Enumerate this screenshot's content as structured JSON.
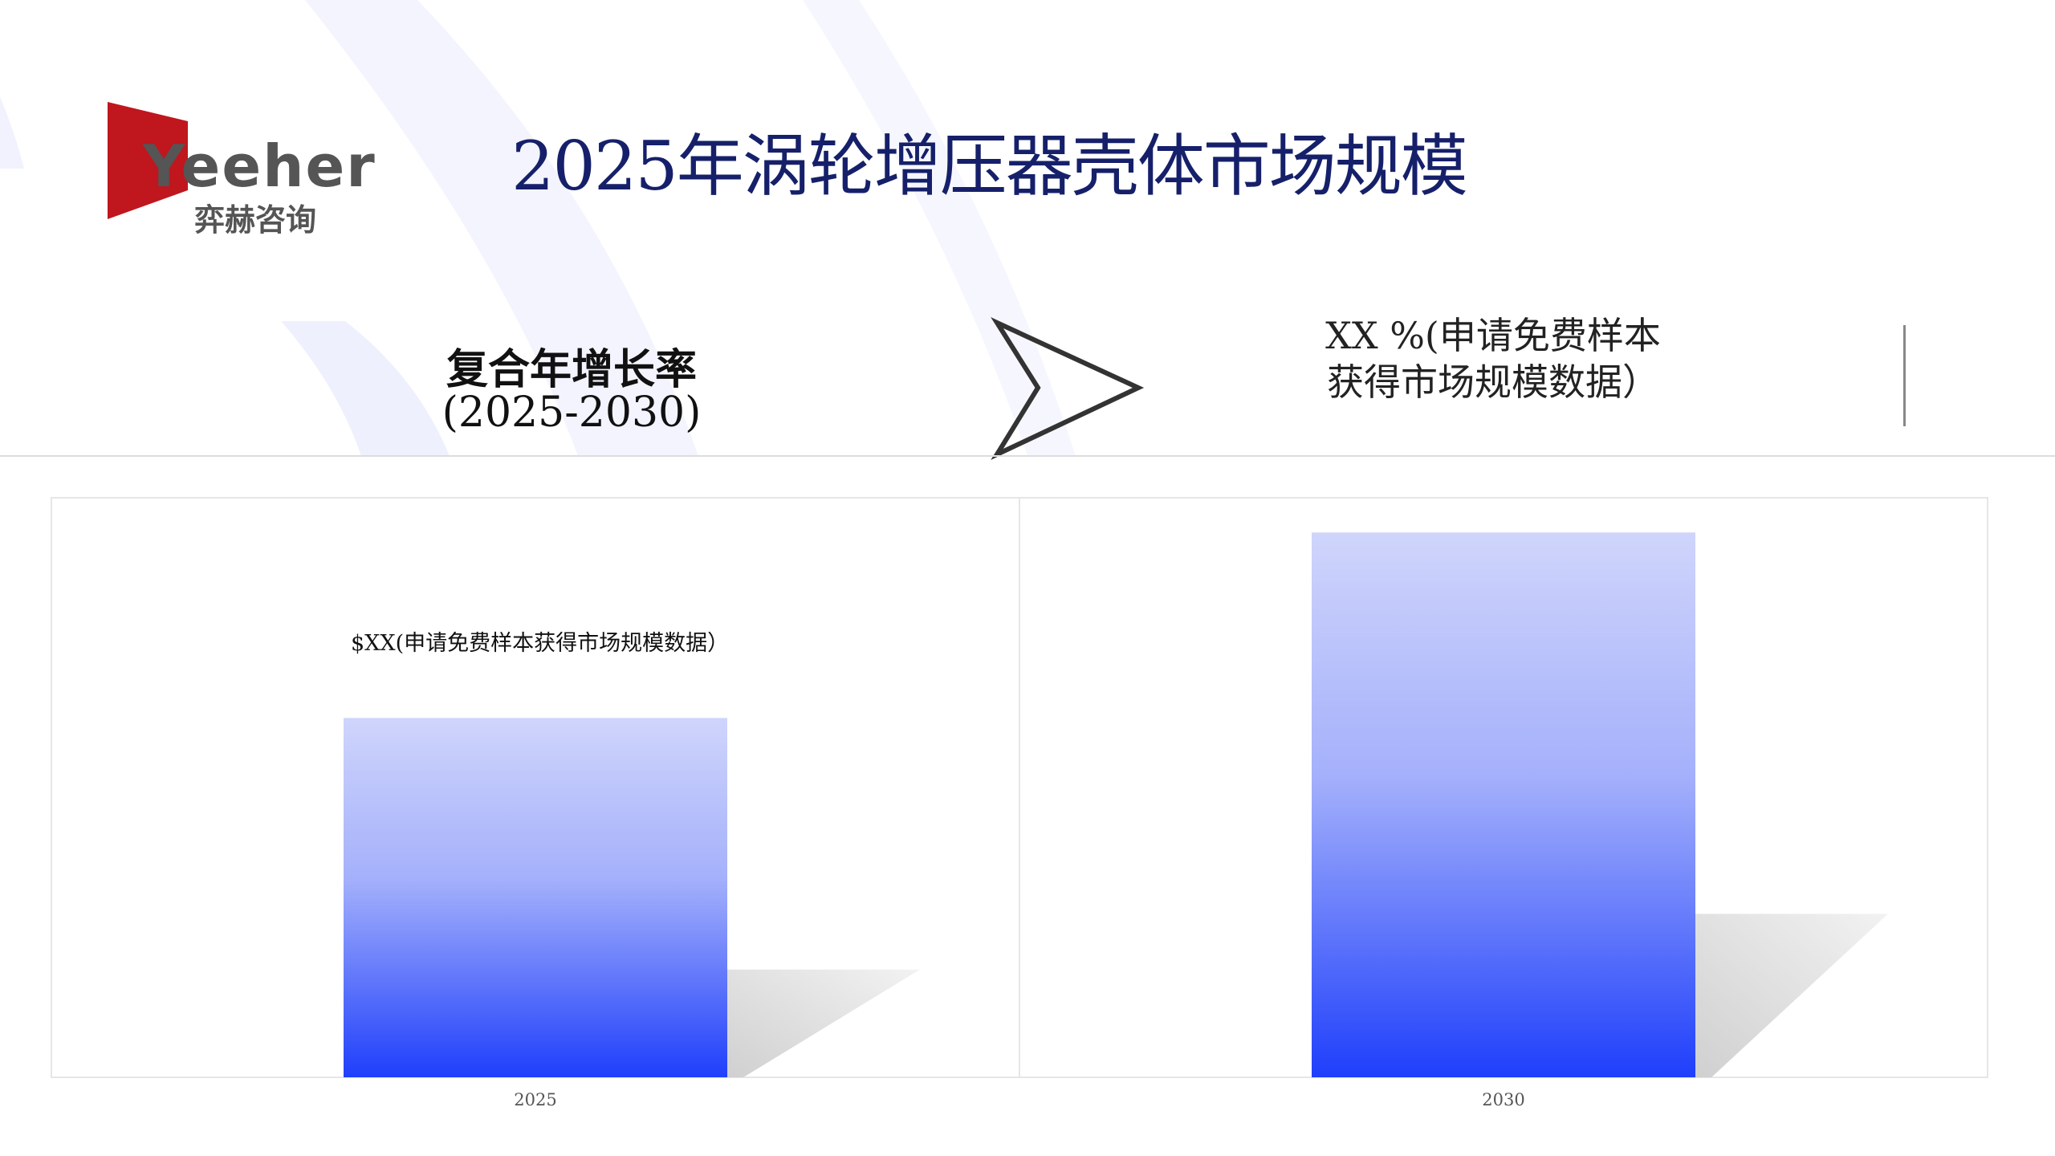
{
  "logo": {
    "brand": "Yeeher",
    "subtitle": "弈赫咨询",
    "color": "#c0161e"
  },
  "header": {
    "title": "2025年涡轮增压器壳体市场规模"
  },
  "cagr": {
    "label": "复合年增长率",
    "period": "(2025-2030)"
  },
  "arrow_icon": "chevron-right-arrow",
  "cagr_value": {
    "line1": "XX %(申请免费样本",
    "line2": "获得市场规模数据）"
  },
  "colors": {
    "title": "#16206a",
    "bar_top": "#cfd5fb",
    "bar_bottom": "#1f3ffb"
  },
  "chart_data": {
    "type": "bar",
    "categories": [
      "2025",
      "2030"
    ],
    "values": [
      0.62,
      0.94
    ],
    "ylim": [
      0,
      1
    ],
    "data_labels": [
      "$XX(申请免费样本获得市场规模数据）",
      ""
    ],
    "grid": false,
    "legend": "none",
    "title": "",
    "xlabel": "",
    "ylabel": ""
  }
}
